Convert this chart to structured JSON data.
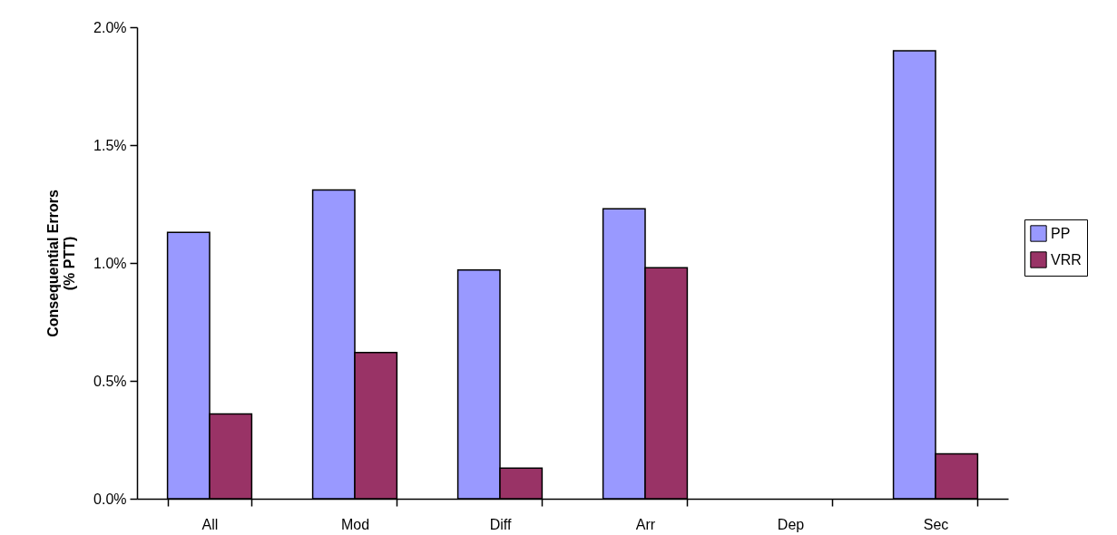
{
  "chart_data": {
    "type": "bar",
    "ylabel": "Consequential Errors\n(% PTT)",
    "categories": [
      "All",
      "Mod",
      "Diff",
      "Arr",
      "Dep",
      "Sec"
    ],
    "series": [
      {
        "name": "PP",
        "color": "#9999ff",
        "values": [
          1.13,
          1.31,
          0.97,
          1.23,
          null,
          1.9
        ]
      },
      {
        "name": "VRR",
        "color": "#993366",
        "values": [
          0.36,
          0.62,
          0.13,
          0.98,
          null,
          0.19
        ]
      }
    ],
    "ylim": [
      0,
      2
    ],
    "yticks": [
      {
        "value": 0,
        "label": "0.0%"
      },
      {
        "value": 0.5,
        "label": "0.5%"
      },
      {
        "value": 1,
        "label": "1.0%"
      },
      {
        "value": 1.5,
        "label": "1.5%"
      },
      {
        "value": 2,
        "label": "2.0%"
      }
    ],
    "grid": false,
    "legend": "right"
  }
}
